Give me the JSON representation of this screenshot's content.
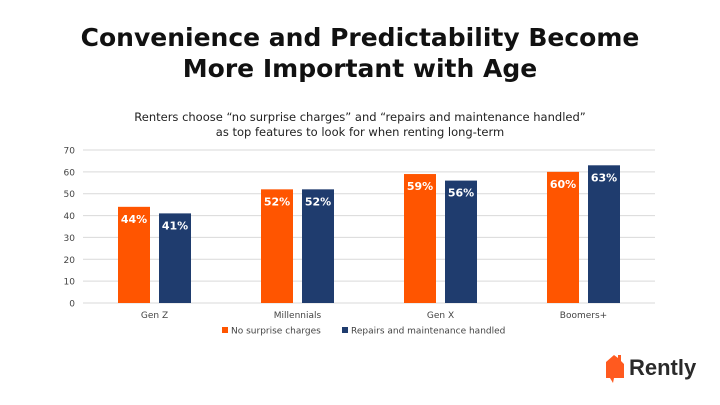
{
  "title_line1": "Convenience and Predictability Become",
  "title_line2": "More Important with Age",
  "subtitle_line1": "Renters choose “no surprise charges” and “repairs and maintenance handled”",
  "subtitle_line2": "as top features to look for when renting long-term",
  "logo_text": "Rently",
  "colors": {
    "orange": "#FF5500",
    "navy": "#1F3C6E",
    "grid": "#D9D9D9"
  },
  "chart_data": {
    "type": "bar",
    "categories": [
      "Gen Z",
      "Millennials",
      "Gen X",
      "Boomers+"
    ],
    "series": [
      {
        "name": "No surprise charges",
        "values": [
          44,
          52,
          59,
          60
        ],
        "labels": [
          "44%",
          "52%",
          "59%",
          "60%"
        ],
        "color": "#FF5500"
      },
      {
        "name": "Repairs and maintenance handled",
        "values": [
          41,
          52,
          56,
          63
        ],
        "labels": [
          "41%",
          "52%",
          "56%",
          "63%"
        ],
        "color": "#1F3C6E"
      }
    ],
    "ylim": [
      0,
      70
    ],
    "yticks": [
      0,
      10,
      20,
      30,
      40,
      50,
      60,
      70
    ],
    "grid": true,
    "legend": "bottom"
  }
}
